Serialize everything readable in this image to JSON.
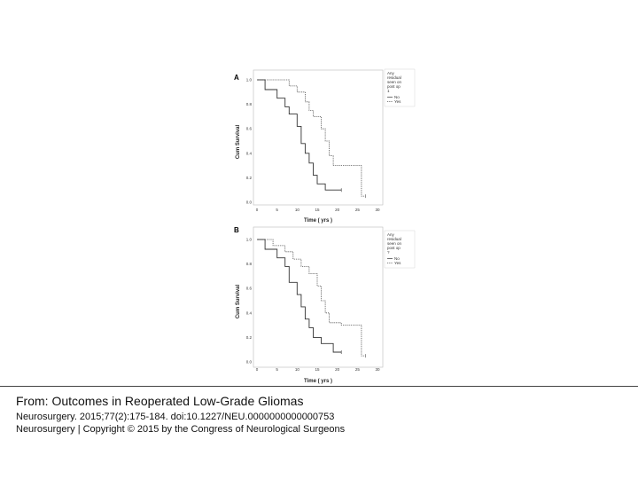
{
  "caption": {
    "title": "From: Outcomes in Reoperated Low-Grade Gliomas",
    "citation": "Neurosurgery. 2015;77(2):175-184. doi:10.1227/NEU.0000000000000753",
    "copyright": "Neurosurgery | Copyright © 2015 by the Congress of Neurological Surgeons"
  },
  "chart_data": [
    {
      "type": "line",
      "panel": "A",
      "xlabel": "Time ( yrs )",
      "ylabel": "Cum Survival",
      "xlim": [
        0,
        30
      ],
      "ylim": [
        0.0,
        1.0
      ],
      "x_ticks": [
        "0",
        "5",
        "10",
        "15",
        "20",
        "25",
        "30"
      ],
      "y_ticks": [
        "0.0",
        "0.2",
        "0.4",
        "0.6",
        "0.8",
        "1.0"
      ],
      "legend": {
        "title": [
          "Any",
          "residual",
          "seen on",
          "post op",
          "1"
        ],
        "entries": [
          "No",
          "Yes"
        ],
        "placement": "right"
      },
      "grid": false,
      "series": [
        {
          "name": "No",
          "style": "solid",
          "color": "#333333",
          "x": [
            0,
            2,
            2,
            5,
            5,
            7,
            7,
            8,
            8,
            10,
            10,
            11,
            11,
            12,
            12,
            13,
            13,
            14,
            14,
            15,
            15,
            17,
            17,
            21
          ],
          "y": [
            1.0,
            1.0,
            0.92,
            0.92,
            0.85,
            0.85,
            0.78,
            0.78,
            0.72,
            0.72,
            0.62,
            0.62,
            0.48,
            0.48,
            0.4,
            0.4,
            0.32,
            0.32,
            0.22,
            0.22,
            0.15,
            0.15,
            0.1,
            0.1
          ]
        },
        {
          "name": "Yes",
          "style": "dotted",
          "color": "#555555",
          "x": [
            0,
            8,
            8,
            10,
            10,
            12,
            12,
            13,
            13,
            14,
            14,
            16,
            16,
            17,
            17,
            18,
            18,
            19,
            19,
            21,
            21,
            26,
            26,
            27
          ],
          "y": [
            1.0,
            1.0,
            0.95,
            0.95,
            0.9,
            0.9,
            0.82,
            0.82,
            0.75,
            0.75,
            0.7,
            0.7,
            0.6,
            0.6,
            0.5,
            0.5,
            0.38,
            0.38,
            0.3,
            0.3,
            0.3,
            0.3,
            0.05,
            0.05
          ]
        }
      ]
    },
    {
      "type": "line",
      "panel": "B",
      "xlabel": "Time ( yrs )",
      "ylabel": "Cum Survival",
      "xlim": [
        0,
        30
      ],
      "ylim": [
        0.0,
        1.0
      ],
      "x_ticks": [
        "0",
        "5",
        "10",
        "15",
        "20",
        "25",
        "30"
      ],
      "y_ticks": [
        "0.0",
        "0.2",
        "0.4",
        "0.6",
        "0.8",
        "1.0"
      ],
      "legend": {
        "title": [
          "Any",
          "residual",
          "seen on",
          "post op",
          "?"
        ],
        "entries": [
          "No",
          "Yes"
        ],
        "placement": "right"
      },
      "grid": false,
      "series": [
        {
          "name": "No",
          "style": "solid",
          "color": "#333333",
          "x": [
            0,
            2,
            2,
            5,
            5,
            7,
            7,
            8,
            8,
            10,
            10,
            11,
            11,
            12,
            12,
            13,
            13,
            14,
            14,
            16,
            16,
            19,
            19,
            21
          ],
          "y": [
            1.0,
            1.0,
            0.92,
            0.92,
            0.85,
            0.85,
            0.78,
            0.78,
            0.65,
            0.65,
            0.55,
            0.55,
            0.45,
            0.45,
            0.35,
            0.35,
            0.28,
            0.28,
            0.2,
            0.2,
            0.15,
            0.15,
            0.08,
            0.08
          ]
        },
        {
          "name": "Yes",
          "style": "dotted",
          "color": "#555555",
          "x": [
            0,
            4,
            4,
            7,
            7,
            9,
            9,
            11,
            11,
            13,
            13,
            15,
            15,
            16,
            16,
            17,
            17,
            18,
            18,
            21,
            21,
            26,
            26,
            27
          ],
          "y": [
            1.0,
            1.0,
            0.95,
            0.95,
            0.9,
            0.9,
            0.84,
            0.84,
            0.78,
            0.78,
            0.72,
            0.72,
            0.62,
            0.62,
            0.5,
            0.5,
            0.4,
            0.4,
            0.32,
            0.32,
            0.3,
            0.3,
            0.05,
            0.05
          ]
        }
      ]
    }
  ]
}
